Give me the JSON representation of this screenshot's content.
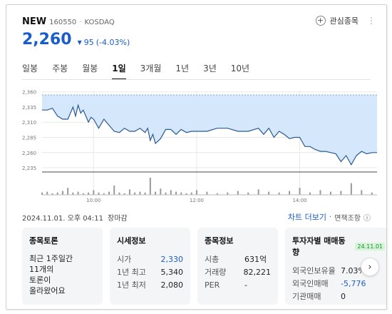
{
  "header": {
    "name": "NEW",
    "code": "160550",
    "separator": "·",
    "market": "KOSDAQ",
    "favorite_label": "관심종목",
    "more_icon": "more-icon"
  },
  "price": {
    "current": "2,260",
    "change": "95",
    "change_pct": "(-4.03%)",
    "direction": "down"
  },
  "tabs": [
    {
      "label": "일봉",
      "active": false
    },
    {
      "label": "주봉",
      "active": false
    },
    {
      "label": "월봉",
      "active": false
    },
    {
      "label": "1일",
      "active": true
    },
    {
      "label": "3개월",
      "active": false
    },
    {
      "label": "1년",
      "active": false
    },
    {
      "label": "3년",
      "active": false
    },
    {
      "label": "10년",
      "active": false
    }
  ],
  "chart_data": {
    "type": "area",
    "ylim": [
      2228,
      2362
    ],
    "yticks": [
      "2,360",
      "2,335",
      "2,310",
      "2,285",
      "2,260",
      "2,235"
    ],
    "ytick_values": [
      2360,
      2335,
      2310,
      2285,
      2260,
      2235
    ],
    "xticks": [
      "10:00",
      "12:00",
      "14:00"
    ],
    "xtick_values": [
      10,
      12,
      14
    ],
    "xlim": [
      9,
      15.5
    ],
    "reference_price": 2355,
    "grid": true,
    "series": [
      {
        "x": [
          9.0,
          9.1,
          9.2,
          9.3,
          9.4,
          9.5,
          9.55,
          9.6,
          9.65,
          9.7,
          9.75,
          9.8,
          9.85,
          9.9,
          9.95,
          10.0,
          10.1,
          10.2,
          10.3,
          10.4,
          10.5,
          10.6,
          10.7,
          10.8,
          10.9,
          11.0,
          11.05,
          11.1,
          11.15,
          11.2,
          11.3,
          11.4,
          11.5,
          11.6,
          11.7,
          11.8,
          11.9,
          12.0,
          12.2,
          12.4,
          12.6,
          12.8,
          13.0,
          13.2,
          13.3,
          13.4,
          13.5,
          13.6,
          13.7,
          13.8,
          13.9,
          14.0,
          14.1,
          14.2,
          14.3,
          14.4,
          14.5,
          14.6,
          14.7,
          14.8,
          14.9,
          15.0,
          15.1,
          15.2,
          15.3,
          15.4,
          15.5
        ],
        "values": [
          2330,
          2330,
          2333,
          2320,
          2315,
          2315,
          2325,
          2335,
          2320,
          2338,
          2325,
          2330,
          2320,
          2310,
          2318,
          2315,
          2300,
          2315,
          2305,
          2295,
          2293,
          2300,
          2295,
          2295,
          2300,
          2293,
          2300,
          2280,
          2290,
          2275,
          2283,
          2298,
          2298,
          2290,
          2298,
          2293,
          2295,
          2295,
          2295,
          2300,
          2300,
          2295,
          2295,
          2300,
          2290,
          2300,
          2285,
          2295,
          2290,
          2283,
          2285,
          2285,
          2270,
          2270,
          2265,
          2262,
          2262,
          2260,
          2258,
          2245,
          2255,
          2240,
          2255,
          2262,
          2258,
          2260,
          2260
        ]
      }
    ],
    "volume": {
      "x": [
        9.0,
        9.1,
        9.2,
        9.3,
        9.4,
        9.5,
        9.6,
        9.7,
        9.8,
        9.9,
        10.0,
        10.1,
        10.2,
        10.3,
        10.4,
        10.5,
        10.6,
        10.7,
        10.8,
        10.9,
        11.0,
        11.1,
        11.2,
        11.3,
        11.4,
        11.5,
        11.6,
        11.7,
        11.8,
        11.9,
        12.0,
        12.2,
        12.4,
        12.6,
        12.8,
        13.0,
        13.2,
        13.4,
        13.6,
        13.8,
        14.0,
        14.2,
        14.4,
        14.6,
        14.8,
        15.0,
        15.2,
        15.4
      ],
      "values": [
        3,
        4,
        2,
        3,
        5,
        9,
        3,
        4,
        2,
        3,
        6,
        3,
        2,
        4,
        12,
        3,
        2,
        7,
        3,
        4,
        3,
        22,
        4,
        8,
        3,
        6,
        4,
        3,
        2,
        3,
        6,
        4,
        2,
        3,
        5,
        3,
        7,
        4,
        3,
        5,
        9,
        3,
        6,
        4,
        5,
        15,
        6,
        3
      ]
    }
  },
  "date_text": "2024.11.01. 오후 04:11",
  "status_text": "장마감",
  "links": {
    "chart_more": "차트 더보기",
    "separator": "·",
    "disclaimer": "면책조항",
    "info_icon": "info-icon"
  },
  "cards": {
    "discussion": {
      "title": "종목토론",
      "lines": [
        "최근 1주일간",
        "11개의",
        "토론이",
        "올라왔어요"
      ]
    },
    "market_info": {
      "title": "시세정보",
      "rows": [
        {
          "key": "시가",
          "value": "2,330"
        },
        {
          "key": "1년 최고",
          "value": "5,340"
        },
        {
          "key": "1년 최저",
          "value": "2,080"
        }
      ]
    },
    "stock_info": {
      "title": "종목정보",
      "rows": [
        {
          "key": "시총",
          "value": "631억"
        },
        {
          "key": "거래량",
          "value": "82,221"
        },
        {
          "key": "PER",
          "value": "-"
        }
      ]
    },
    "investor": {
      "title": "투자자별 매매동향",
      "badge": "24.11.01",
      "rows": [
        {
          "key": "외국인보유율",
          "value": "7.03%"
        },
        {
          "key": "외국인매매",
          "value": "-5,776"
        },
        {
          "key": "기관매매",
          "value": "0"
        }
      ]
    }
  },
  "colors": {
    "accent_blue": "#1a5dc9",
    "area_fill": "#d4e7fb",
    "line": "#2a5b93",
    "reference": "#7aa6d6",
    "volume_bar": "#999999",
    "badge_bg": "#d6f5d6",
    "badge_fg": "#1a8a3a"
  }
}
